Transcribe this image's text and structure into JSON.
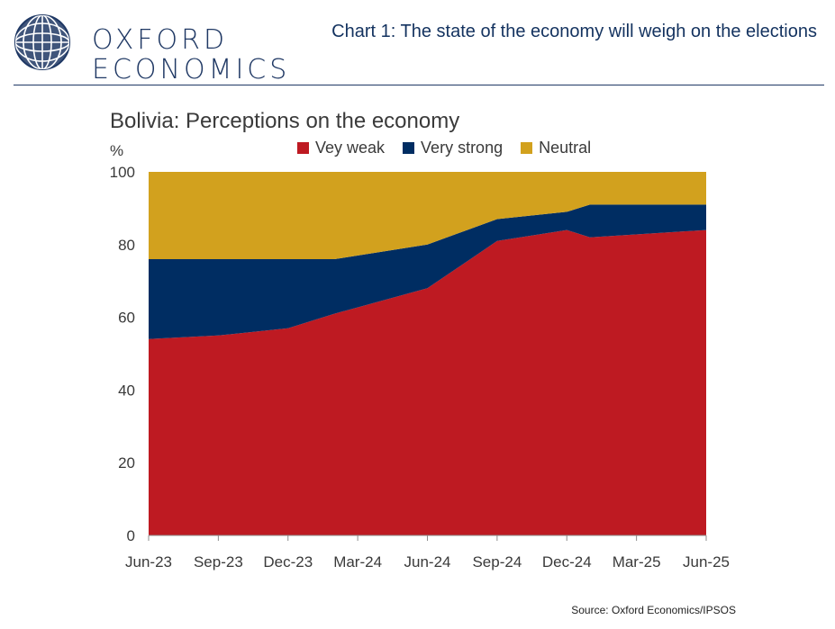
{
  "header": {
    "logo_line1": "OXFORD",
    "logo_line2": "ECONOMICS",
    "title": "Chart 1: The state of the economy will weigh on the elections"
  },
  "colors": {
    "very_weak": "#be1a22",
    "very_strong": "#002d62",
    "neutral": "#d2a11e",
    "logo_globe": "#1f3864"
  },
  "chart_data": {
    "type": "area",
    "stacked": true,
    "title": "Bolivia: Perceptions on the economy",
    "ylabel": "%",
    "xlabel": "",
    "ylim": [
      0,
      100
    ],
    "yticks": [
      0,
      20,
      40,
      60,
      80,
      100
    ],
    "x": [
      "Jun-23",
      "Sep-23",
      "Dec-23",
      "Feb-24",
      "Jun-24",
      "Sep-24",
      "Dec-24",
      "Jan-25",
      "Jun-25"
    ],
    "x_index": [
      0,
      3,
      6,
      8,
      12,
      15,
      18,
      19,
      24
    ],
    "xticks": [
      "Jun-23",
      "Sep-23",
      "Dec-23",
      "Mar-24",
      "Jun-24",
      "Sep-24",
      "Dec-24",
      "Mar-25",
      "Jun-25"
    ],
    "xtick_index": [
      0,
      3,
      6,
      9,
      12,
      15,
      18,
      21,
      24
    ],
    "series": [
      {
        "name": "Vey weak",
        "values": [
          54,
          55,
          57,
          61,
          68,
          81,
          84,
          82,
          84
        ]
      },
      {
        "name": "Very strong",
        "values": [
          22,
          21,
          19,
          15,
          12,
          6,
          5,
          9,
          7
        ]
      },
      {
        "name": "Neutral",
        "values": [
          24,
          24,
          24,
          24,
          20,
          13,
          11,
          9,
          9
        ]
      }
    ],
    "legend_position": "top"
  },
  "footer": {
    "source": "Source: Oxford Economics/IPSOS"
  }
}
